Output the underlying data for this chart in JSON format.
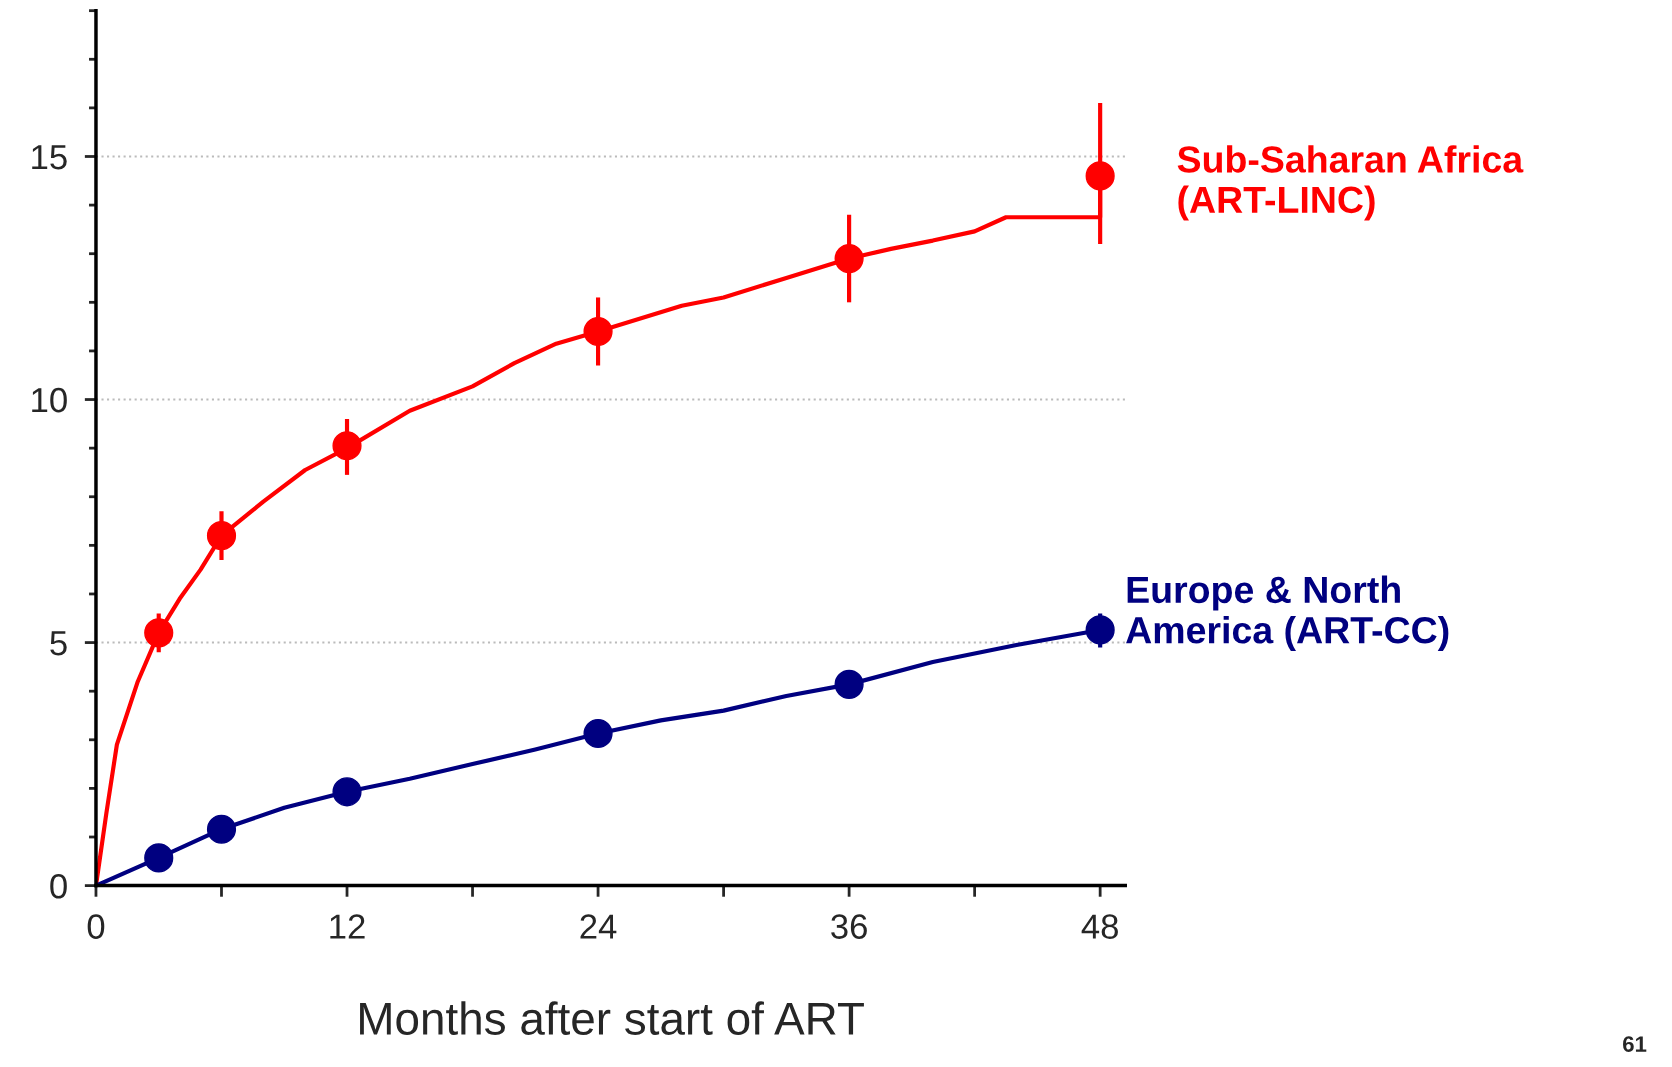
{
  "chart_data": {
    "type": "line",
    "xlabel": "Months after start of ART",
    "xlim": [
      0,
      49.2
    ],
    "xticks": [
      0,
      {
        "value": 6,
        "label": null
      },
      12,
      {
        "value": 18,
        "label": null
      },
      24,
      {
        "value": 30,
        "label": null
      },
      36,
      {
        "value": 42,
        "label": null
      },
      48
    ],
    "ylim": [
      0,
      18
    ],
    "yticks": [
      0,
      {
        "value": 1,
        "label": null
      },
      {
        "value": 2,
        "label": null
      },
      {
        "value": 3,
        "label": null
      },
      {
        "value": 4,
        "label": null
      },
      5,
      {
        "value": 6,
        "label": null
      },
      {
        "value": 7,
        "label": null
      },
      {
        "value": 8,
        "label": null
      },
      {
        "value": 9,
        "label": null
      },
      10,
      {
        "value": 11,
        "label": null
      },
      {
        "value": 12,
        "label": null
      },
      {
        "value": 13,
        "label": null
      },
      {
        "value": 14,
        "label": null
      },
      15,
      {
        "value": 16,
        "label": null
      },
      {
        "value": 17,
        "label": null
      },
      {
        "value": 18,
        "label": null
      }
    ],
    "grid": "y",
    "legend": false,
    "marker": "none",
    "line_style": "solid",
    "series": [
      {
        "name": "Sub-Saharan Africa\n(ART-LINC)",
        "color": "#ff0000",
        "x": [
          0,
          0.5,
          1,
          2,
          3,
          4,
          5,
          6,
          8,
          10,
          12,
          15,
          18,
          20,
          22,
          24,
          28,
          30,
          33,
          36,
          38,
          40,
          42,
          43.5,
          48,
          48
        ],
        "values": [
          0,
          1.5,
          2.9,
          4.2,
          5.2,
          5.9,
          6.5,
          7.2,
          7.9,
          8.55,
          9.0,
          9.77,
          10.27,
          10.75,
          11.15,
          11.4,
          11.93,
          12.1,
          12.5,
          12.9,
          13.1,
          13.27,
          13.46,
          13.75,
          13.75,
          14.6
        ]
      },
      {
        "type": "scatter",
        "color": "#ff0000",
        "marker": "circle",
        "x": [
          3,
          6,
          12,
          24,
          36,
          48
        ],
        "values": [
          5.2,
          7.2,
          9.05,
          11.4,
          12.9,
          14.6
        ],
        "errors": [
          [
            4.8,
            5.6
          ],
          [
            6.7,
            7.7
          ],
          [
            8.45,
            9.6
          ],
          [
            10.7,
            12.1
          ],
          [
            12.0,
            13.8
          ],
          [
            13.2,
            16.1
          ]
        ]
      },
      {
        "name": "Europe & North\nAmerica (ART-CC)",
        "color": "#000080",
        "x": [
          0,
          3,
          6,
          9,
          12,
          15,
          18,
          21,
          24,
          27,
          30,
          33,
          36,
          40,
          44,
          48
        ],
        "values": [
          0,
          0.57,
          1.16,
          1.6,
          1.93,
          2.2,
          2.5,
          2.8,
          3.13,
          3.4,
          3.6,
          3.9,
          4.14,
          4.6,
          4.95,
          5.26
        ]
      },
      {
        "type": "scatter",
        "color": "#000080",
        "marker": "circle",
        "x": [
          3,
          6,
          12,
          24,
          36,
          48
        ],
        "values": [
          0.57,
          1.16,
          1.93,
          3.13,
          4.14,
          5.26
        ],
        "errors": [
          null,
          null,
          null,
          null,
          null,
          [
            4.9,
            5.6
          ]
        ]
      }
    ],
    "annotations": [
      "61"
    ]
  }
}
